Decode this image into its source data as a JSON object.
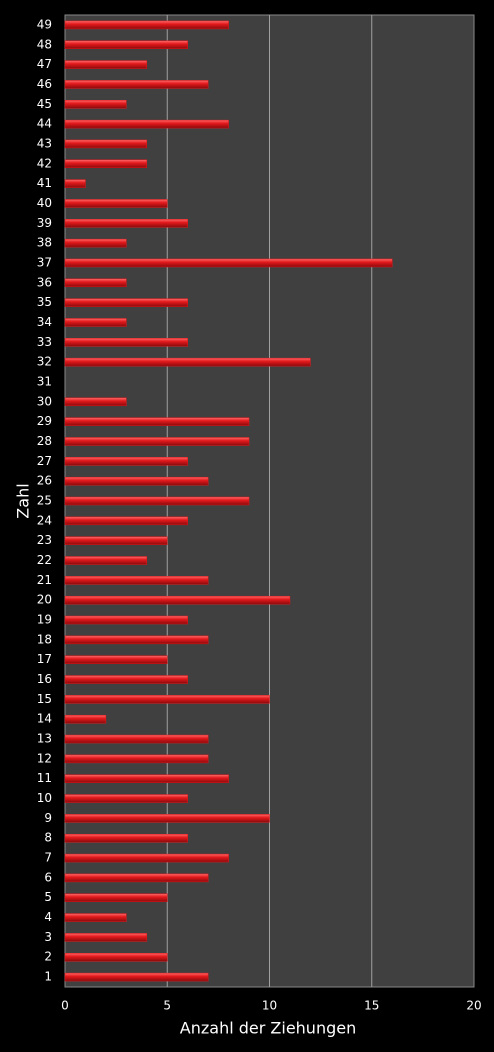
{
  "chart_data": {
    "type": "bar",
    "orientation": "horizontal",
    "xlabel": "Anzahl der Ziehungen",
    "ylabel": "Zahl",
    "categories": [
      "1",
      "2",
      "3",
      "4",
      "5",
      "6",
      "7",
      "8",
      "9",
      "10",
      "11",
      "12",
      "13",
      "14",
      "15",
      "16",
      "17",
      "18",
      "19",
      "20",
      "21",
      "22",
      "23",
      "24",
      "25",
      "26",
      "27",
      "28",
      "29",
      "30",
      "31",
      "32",
      "33",
      "34",
      "35",
      "36",
      "37",
      "38",
      "39",
      "40",
      "41",
      "42",
      "43",
      "44",
      "45",
      "46",
      "47",
      "48",
      "49"
    ],
    "values": [
      7,
      5,
      4,
      3,
      5,
      7,
      8,
      6,
      10,
      6,
      8,
      7,
      7,
      2,
      10,
      6,
      5,
      7,
      6,
      11,
      7,
      4,
      5,
      6,
      9,
      7,
      6,
      9,
      9,
      3,
      0,
      12,
      6,
      3,
      6,
      3,
      16,
      3,
      6,
      5,
      1,
      4,
      4,
      8,
      3,
      7,
      4,
      6,
      8
    ],
    "color": "#e3191c",
    "xlim": [
      0,
      20
    ],
    "xticks": [
      0,
      5,
      10,
      15,
      20
    ],
    "grid": true
  }
}
